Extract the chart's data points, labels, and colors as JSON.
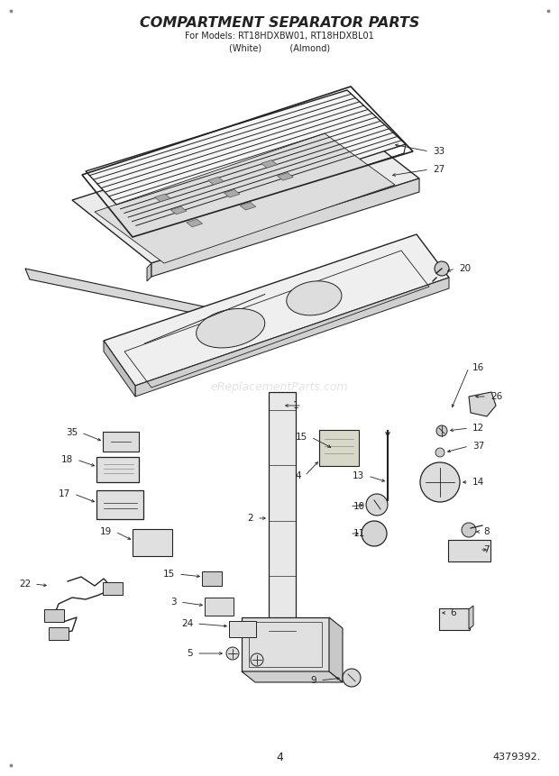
{
  "title": "COMPARTMENT SEPARATOR PARTS",
  "subtitle_line1": "For Models: RT18HDXBW01, RT18HDXBL01",
  "subtitle_line2": "(White)          (Almond)",
  "page_number": "4",
  "part_number": "4379392.",
  "bg_color": "#ffffff",
  "title_fontsize": 11.5,
  "subtitle_fontsize": 7.0,
  "fig_width": 6.2,
  "fig_height": 8.61,
  "watermark": "eReplacementParts.com",
  "line_color": "#222222",
  "fill_light": "#f0f0f0",
  "fill_mid": "#e0e0e0",
  "fill_dark": "#c8c8c8"
}
